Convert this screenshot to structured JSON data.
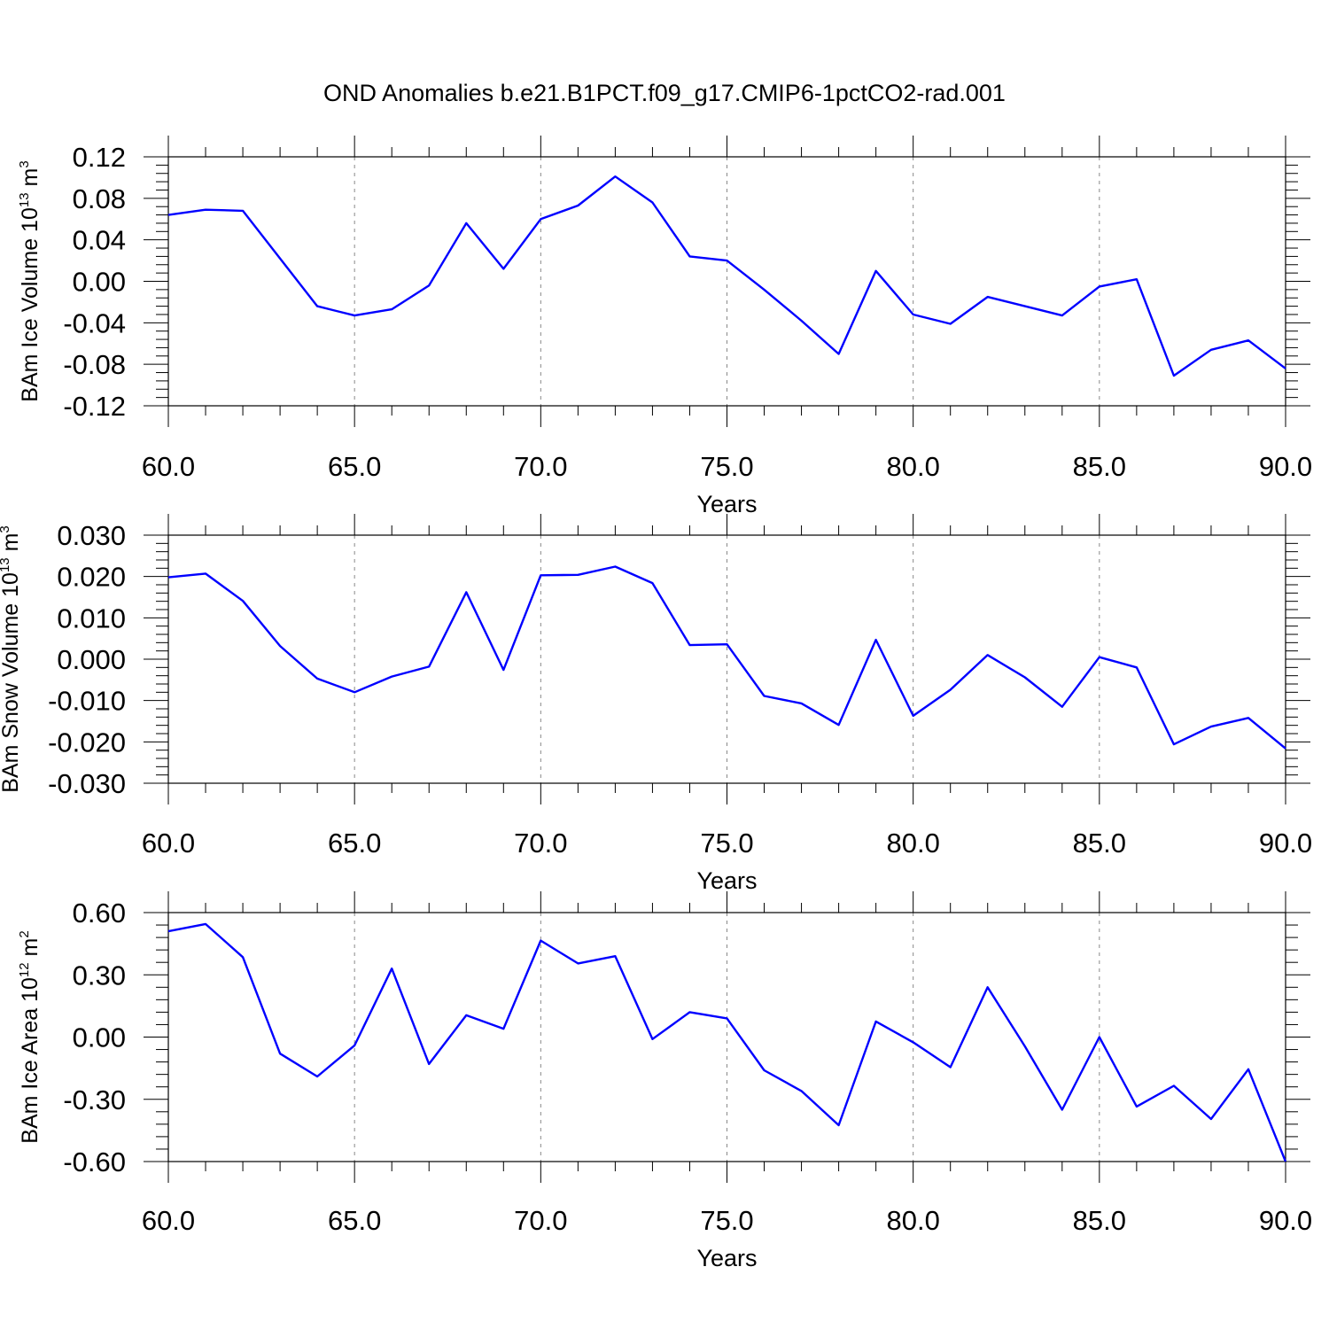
{
  "title": "OND Anomalies b.e21.B1PCT.f09_g17.CMIP6-1pctCO2-rad.001",
  "colors": {
    "series": "#0000ff",
    "frame": "#000000",
    "grid": "#888888"
  },
  "chart_data": [
    {
      "type": "line",
      "ylabel": {
        "text": "BAm Ice Volume 10",
        "exp": "13",
        "unit": " m",
        "unit_exp": "3"
      },
      "xlabel": "Years",
      "xlim": [
        60,
        90
      ],
      "ylim": [
        -0.12,
        0.12
      ],
      "xticks": [
        "60.0",
        "65.0",
        "70.0",
        "75.0",
        "80.0",
        "85.0",
        "90.0"
      ],
      "yticks": [
        "0.12",
        "0.08",
        "0.04",
        "0.00",
        "-0.04",
        "-0.08",
        "-0.12"
      ],
      "grid": "vertical dashed at major x ticks",
      "x": [
        60,
        61,
        62,
        63,
        64,
        65,
        66,
        67,
        68,
        69,
        70,
        71,
        72,
        73,
        74,
        75,
        76,
        77,
        78,
        79,
        80,
        81,
        82,
        83,
        84,
        85,
        86,
        87,
        88,
        89,
        90
      ],
      "series": [
        {
          "values": [
            0.064,
            0.069,
            0.068,
            0.022,
            -0.024,
            -0.033,
            -0.027,
            -0.004,
            0.056,
            0.012,
            0.06,
            0.073,
            0.101,
            0.076,
            0.024,
            0.02,
            -0.008,
            -0.038,
            -0.07,
            0.01,
            -0.032,
            -0.041,
            -0.015,
            -0.024,
            -0.033,
            -0.005,
            0.002,
            -0.091,
            -0.066,
            -0.057,
            -0.084
          ]
        }
      ]
    },
    {
      "type": "line",
      "ylabel": {
        "text": "BAm Snow Volume 10",
        "exp": "13",
        "unit": " m",
        "unit_exp": "3"
      },
      "xlabel": "Years",
      "xlim": [
        60,
        90
      ],
      "ylim": [
        -0.03,
        0.03
      ],
      "xticks": [
        "60.0",
        "65.0",
        "70.0",
        "75.0",
        "80.0",
        "85.0",
        "90.0"
      ],
      "yticks": [
        "0.030",
        "0.020",
        "0.010",
        "0.000",
        "-0.010",
        "-0.020",
        "-0.030"
      ],
      "grid": "vertical dashed at major x ticks",
      "x": [
        60,
        61,
        62,
        63,
        64,
        65,
        66,
        67,
        68,
        69,
        70,
        71,
        72,
        73,
        74,
        75,
        76,
        77,
        78,
        79,
        80,
        81,
        82,
        83,
        84,
        85,
        86,
        87,
        88,
        89,
        90
      ],
      "series": [
        {
          "values": [
            0.0198,
            0.0207,
            0.0141,
            0.0032,
            -0.0047,
            -0.008,
            -0.0042,
            -0.0018,
            0.0162,
            -0.0026,
            0.0203,
            0.0204,
            0.0224,
            0.0184,
            0.0034,
            0.0036,
            -0.0089,
            -0.0107,
            -0.0159,
            0.0047,
            -0.0137,
            -0.0074,
            0.001,
            -0.0044,
            -0.0115,
            0.0005,
            -0.002,
            -0.0206,
            -0.0163,
            -0.0142,
            -0.0216
          ]
        }
      ]
    },
    {
      "type": "line",
      "ylabel": {
        "text": "BAm Ice Area 10",
        "exp": "12",
        "unit": " m",
        "unit_exp": "2"
      },
      "xlabel": "Years",
      "xlim": [
        60,
        90
      ],
      "ylim": [
        -0.6,
        0.6
      ],
      "xticks": [
        "60.0",
        "65.0",
        "70.0",
        "75.0",
        "80.0",
        "85.0",
        "90.0"
      ],
      "yticks": [
        "0.60",
        "0.30",
        "0.00",
        "-0.30",
        "-0.60"
      ],
      "grid": "vertical dashed at major x ticks",
      "x": [
        60,
        61,
        62,
        63,
        64,
        65,
        66,
        67,
        68,
        69,
        70,
        71,
        72,
        73,
        74,
        75,
        76,
        77,
        78,
        79,
        80,
        81,
        82,
        83,
        84,
        85,
        86,
        87,
        88,
        89,
        90
      ],
      "series": [
        {
          "values": [
            0.51,
            0.545,
            0.385,
            -0.08,
            -0.19,
            -0.04,
            0.33,
            -0.13,
            0.105,
            0.04,
            0.465,
            0.355,
            0.39,
            -0.01,
            0.12,
            0.09,
            -0.16,
            -0.26,
            -0.425,
            0.075,
            -0.025,
            -0.145,
            0.24,
            -0.045,
            -0.35,
            0.0,
            -0.335,
            -0.235,
            -0.395,
            -0.155,
            -0.6
          ]
        }
      ]
    }
  ]
}
